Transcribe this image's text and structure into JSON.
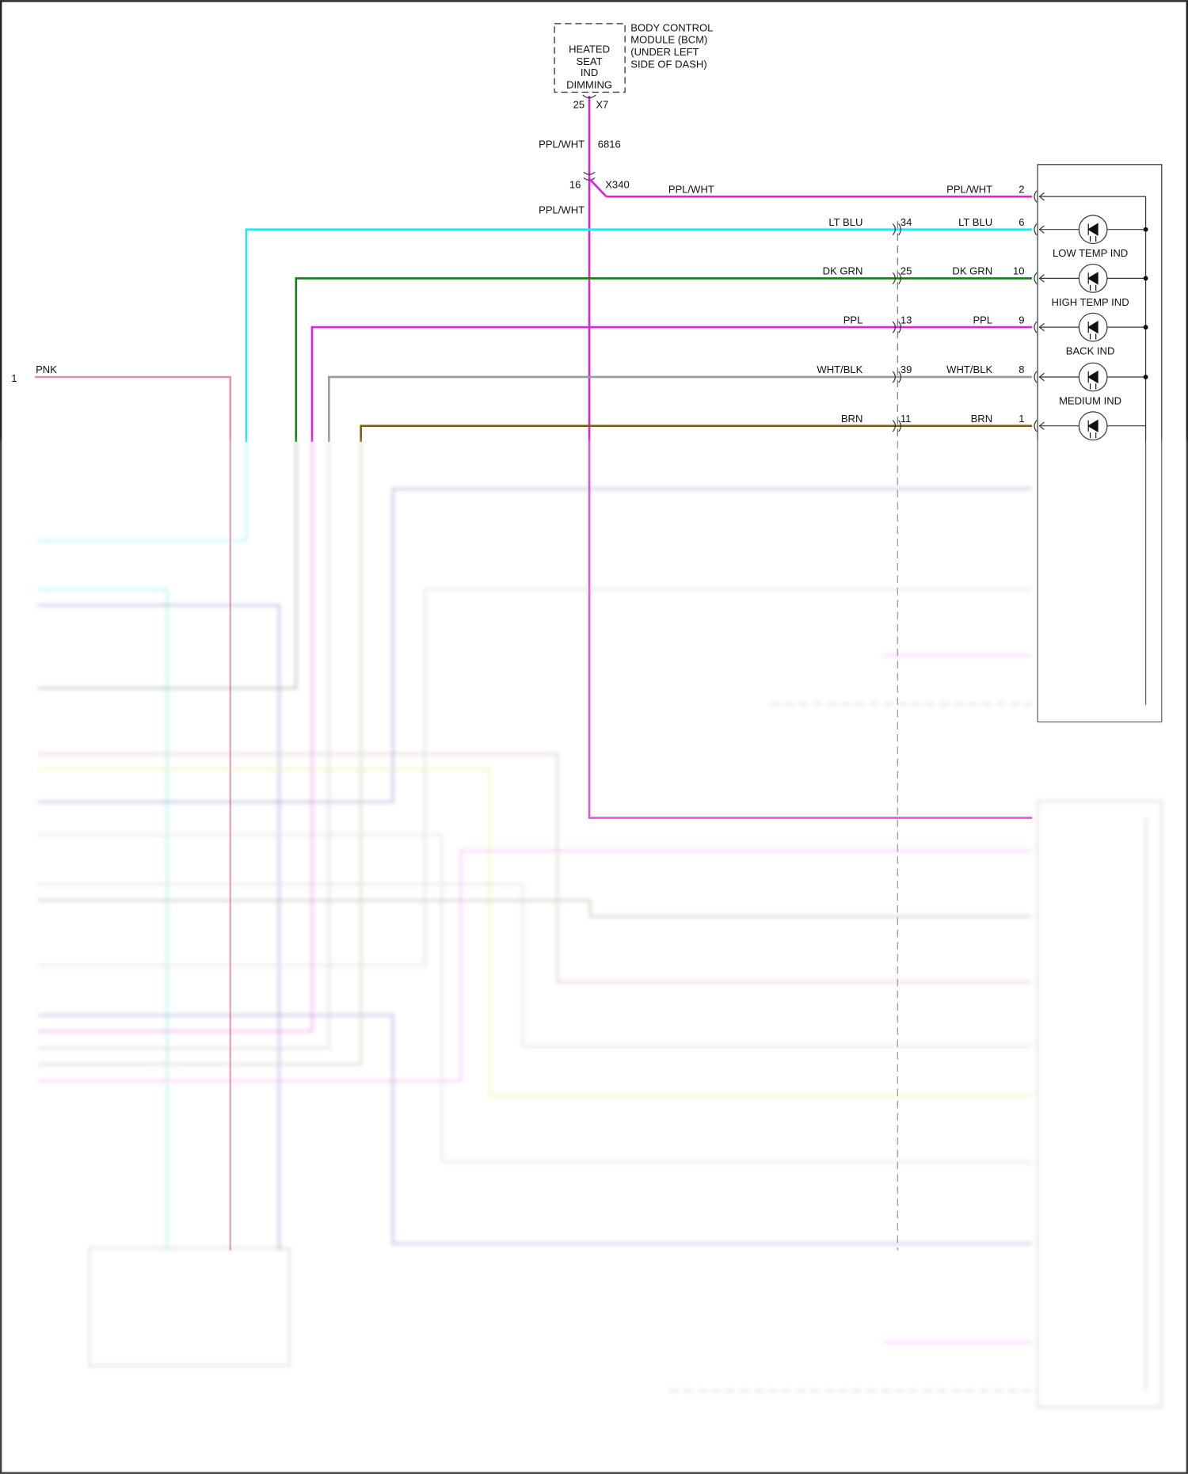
{
  "module": {
    "box_lines": [
      "HEATED",
      "SEAT",
      "IND",
      "DIMMING"
    ],
    "title_lines": [
      "BODY CONTROL",
      "MODULE (BCM)",
      "(UNDER LEFT",
      "SIDE OF DASH)"
    ],
    "pin": "25",
    "connector": "X7"
  },
  "trunk": {
    "color_label": "PPL/WHT",
    "circuit": "6816",
    "splice_pin": "16",
    "splice_connector": "X340",
    "lower_label": "PPL/WHT",
    "color": "#e020e0"
  },
  "left_input": {
    "pin": "1",
    "label": "PNK",
    "color": "#ee88aa"
  },
  "wires": [
    {
      "left_label": "PPL/WHT",
      "inline_pin": "",
      "right_label": "PPL/WHT",
      "pin": "2",
      "color": "#e020e0",
      "led": ""
    },
    {
      "left_label": "LT BLU",
      "inline_pin": "34",
      "right_label": "LT BLU",
      "pin": "6",
      "color": "#22e8ee",
      "led": "LOW TEMP IND"
    },
    {
      "left_label": "DK GRN",
      "inline_pin": "25",
      "right_label": "DK GRN",
      "pin": "10",
      "color": "#1a7a1a",
      "led": "HIGH TEMP IND"
    },
    {
      "left_label": "PPL",
      "inline_pin": "13",
      "right_label": "PPL",
      "pin": "9",
      "color": "#e020e0",
      "led": "BACK IND"
    },
    {
      "left_label": "WHT/BLK",
      "inline_pin": "39",
      "right_label": "WHT/BLK",
      "pin": "8",
      "color": "#999999",
      "led": "MEDIUM IND"
    },
    {
      "left_label": "BRN",
      "inline_pin": "11",
      "right_label": "BRN",
      "pin": "1",
      "color": "#7a6010",
      "led": ""
    }
  ],
  "blurred_colors": {
    "blue": "#5a5ab8",
    "yellow": "#e8e830",
    "tan": "#c0b090",
    "gray": "#bbbbbb",
    "pink": "#f080f0"
  }
}
